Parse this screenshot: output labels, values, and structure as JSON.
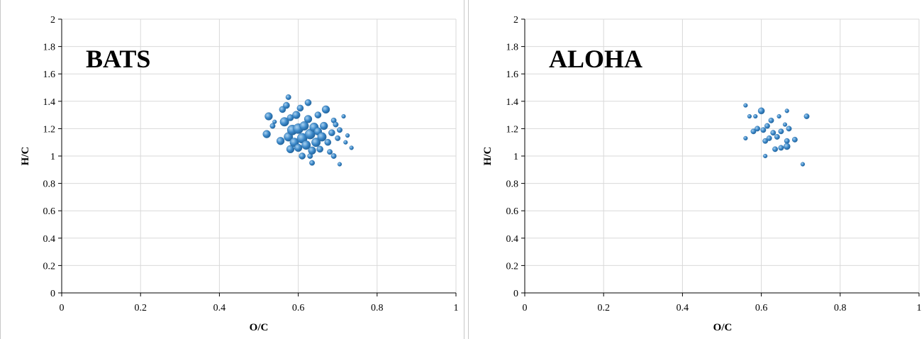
{
  "chart_data": [
    {
      "type": "scatter",
      "title": "BATS",
      "xlabel": "O/C",
      "ylabel": "H/C",
      "xlim": [
        0,
        1
      ],
      "ylim": [
        0,
        2
      ],
      "x_ticks": [
        "0",
        "0.2",
        "0.4",
        "0.6",
        "0.8",
        "1"
      ],
      "y_ticks": [
        "0",
        "0.2",
        "0.4",
        "0.6",
        "0.8",
        "1",
        "1.2",
        "1.4",
        "1.6",
        "1.8",
        "2"
      ],
      "grid": true,
      "legend": "none",
      "marker_color": "#3a87c8",
      "points": [
        {
          "x": 0.52,
          "y": 1.16,
          "s": 5
        },
        {
          "x": 0.525,
          "y": 1.29,
          "s": 5
        },
        {
          "x": 0.535,
          "y": 1.22,
          "s": 3
        },
        {
          "x": 0.54,
          "y": 1.25,
          "s": 2
        },
        {
          "x": 0.555,
          "y": 1.11,
          "s": 5
        },
        {
          "x": 0.56,
          "y": 1.34,
          "s": 4
        },
        {
          "x": 0.565,
          "y": 1.25,
          "s": 6
        },
        {
          "x": 0.57,
          "y": 1.37,
          "s": 4
        },
        {
          "x": 0.575,
          "y": 1.43,
          "s": 3
        },
        {
          "x": 0.575,
          "y": 1.14,
          "s": 6
        },
        {
          "x": 0.58,
          "y": 1.28,
          "s": 4
        },
        {
          "x": 0.58,
          "y": 1.05,
          "s": 5
        },
        {
          "x": 0.585,
          "y": 1.19,
          "s": 7
        },
        {
          "x": 0.59,
          "y": 1.1,
          "s": 6
        },
        {
          "x": 0.595,
          "y": 1.3,
          "s": 5
        },
        {
          "x": 0.6,
          "y": 1.2,
          "s": 7
        },
        {
          "x": 0.6,
          "y": 1.06,
          "s": 5
        },
        {
          "x": 0.605,
          "y": 1.35,
          "s": 4
        },
        {
          "x": 0.61,
          "y": 1.13,
          "s": 7
        },
        {
          "x": 0.61,
          "y": 1.0,
          "s": 4
        },
        {
          "x": 0.615,
          "y": 1.22,
          "s": 6
        },
        {
          "x": 0.62,
          "y": 1.08,
          "s": 6
        },
        {
          "x": 0.625,
          "y": 1.39,
          "s": 4
        },
        {
          "x": 0.625,
          "y": 1.27,
          "s": 5
        },
        {
          "x": 0.63,
          "y": 1.16,
          "s": 7
        },
        {
          "x": 0.63,
          "y": 1.0,
          "s": 3
        },
        {
          "x": 0.635,
          "y": 0.95,
          "s": 3
        },
        {
          "x": 0.635,
          "y": 1.04,
          "s": 5
        },
        {
          "x": 0.64,
          "y": 1.21,
          "s": 6
        },
        {
          "x": 0.645,
          "y": 1.1,
          "s": 6
        },
        {
          "x": 0.65,
          "y": 1.3,
          "s": 4
        },
        {
          "x": 0.65,
          "y": 1.18,
          "s": 5
        },
        {
          "x": 0.655,
          "y": 1.05,
          "s": 4
        },
        {
          "x": 0.66,
          "y": 1.14,
          "s": 6
        },
        {
          "x": 0.665,
          "y": 1.22,
          "s": 5
        },
        {
          "x": 0.67,
          "y": 1.34,
          "s": 5
        },
        {
          "x": 0.675,
          "y": 1.1,
          "s": 4
        },
        {
          "x": 0.68,
          "y": 1.03,
          "s": 3
        },
        {
          "x": 0.685,
          "y": 1.17,
          "s": 4
        },
        {
          "x": 0.69,
          "y": 1.26,
          "s": 3
        },
        {
          "x": 0.695,
          "y": 1.23,
          "s": 3
        },
        {
          "x": 0.69,
          "y": 1.0,
          "s": 3
        },
        {
          "x": 0.7,
          "y": 1.13,
          "s": 3
        },
        {
          "x": 0.705,
          "y": 1.19,
          "s": 3
        },
        {
          "x": 0.705,
          "y": 0.94,
          "s": 2
        },
        {
          "x": 0.715,
          "y": 1.29,
          "s": 2
        },
        {
          "x": 0.72,
          "y": 1.1,
          "s": 2
        },
        {
          "x": 0.725,
          "y": 1.15,
          "s": 2
        },
        {
          "x": 0.735,
          "y": 1.06,
          "s": 2
        }
      ]
    },
    {
      "type": "scatter",
      "title": "ALOHA",
      "xlabel": "O/C",
      "ylabel": "H/C",
      "xlim": [
        0,
        1
      ],
      "ylim": [
        0,
        2
      ],
      "x_ticks": [
        "0",
        "0.2",
        "0.4",
        "0.6",
        "0.8",
        "1"
      ],
      "y_ticks": [
        "0",
        "0.2",
        "0.4",
        "0.6",
        "0.8",
        "1",
        "1.2",
        "1.4",
        "1.6",
        "1.8",
        "2"
      ],
      "grid": true,
      "legend": "none",
      "marker_color": "#3a87c8",
      "points": [
        {
          "x": 0.56,
          "y": 1.37,
          "s": 2
        },
        {
          "x": 0.56,
          "y": 1.13,
          "s": 2
        },
        {
          "x": 0.57,
          "y": 1.29,
          "s": 2
        },
        {
          "x": 0.58,
          "y": 1.18,
          "s": 3
        },
        {
          "x": 0.585,
          "y": 1.29,
          "s": 2
        },
        {
          "x": 0.59,
          "y": 1.2,
          "s": 3
        },
        {
          "x": 0.6,
          "y": 1.33,
          "s": 4
        },
        {
          "x": 0.605,
          "y": 1.19,
          "s": 3
        },
        {
          "x": 0.61,
          "y": 1.11,
          "s": 3
        },
        {
          "x": 0.61,
          "y": 1.0,
          "s": 2
        },
        {
          "x": 0.615,
          "y": 1.22,
          "s": 3
        },
        {
          "x": 0.62,
          "y": 1.13,
          "s": 3
        },
        {
          "x": 0.625,
          "y": 1.26,
          "s": 3
        },
        {
          "x": 0.63,
          "y": 1.17,
          "s": 3
        },
        {
          "x": 0.635,
          "y": 1.05,
          "s": 3
        },
        {
          "x": 0.64,
          "y": 1.14,
          "s": 3
        },
        {
          "x": 0.645,
          "y": 1.29,
          "s": 2
        },
        {
          "x": 0.65,
          "y": 1.06,
          "s": 3
        },
        {
          "x": 0.65,
          "y": 1.18,
          "s": 3
        },
        {
          "x": 0.66,
          "y": 1.23,
          "s": 2
        },
        {
          "x": 0.665,
          "y": 1.11,
          "s": 3
        },
        {
          "x": 0.665,
          "y": 1.07,
          "s": 4
        },
        {
          "x": 0.67,
          "y": 1.2,
          "s": 3
        },
        {
          "x": 0.665,
          "y": 1.33,
          "s": 2
        },
        {
          "x": 0.685,
          "y": 1.12,
          "s": 3
        },
        {
          "x": 0.705,
          "y": 0.94,
          "s": 2
        },
        {
          "x": 0.715,
          "y": 1.29,
          "s": 3
        }
      ]
    }
  ]
}
